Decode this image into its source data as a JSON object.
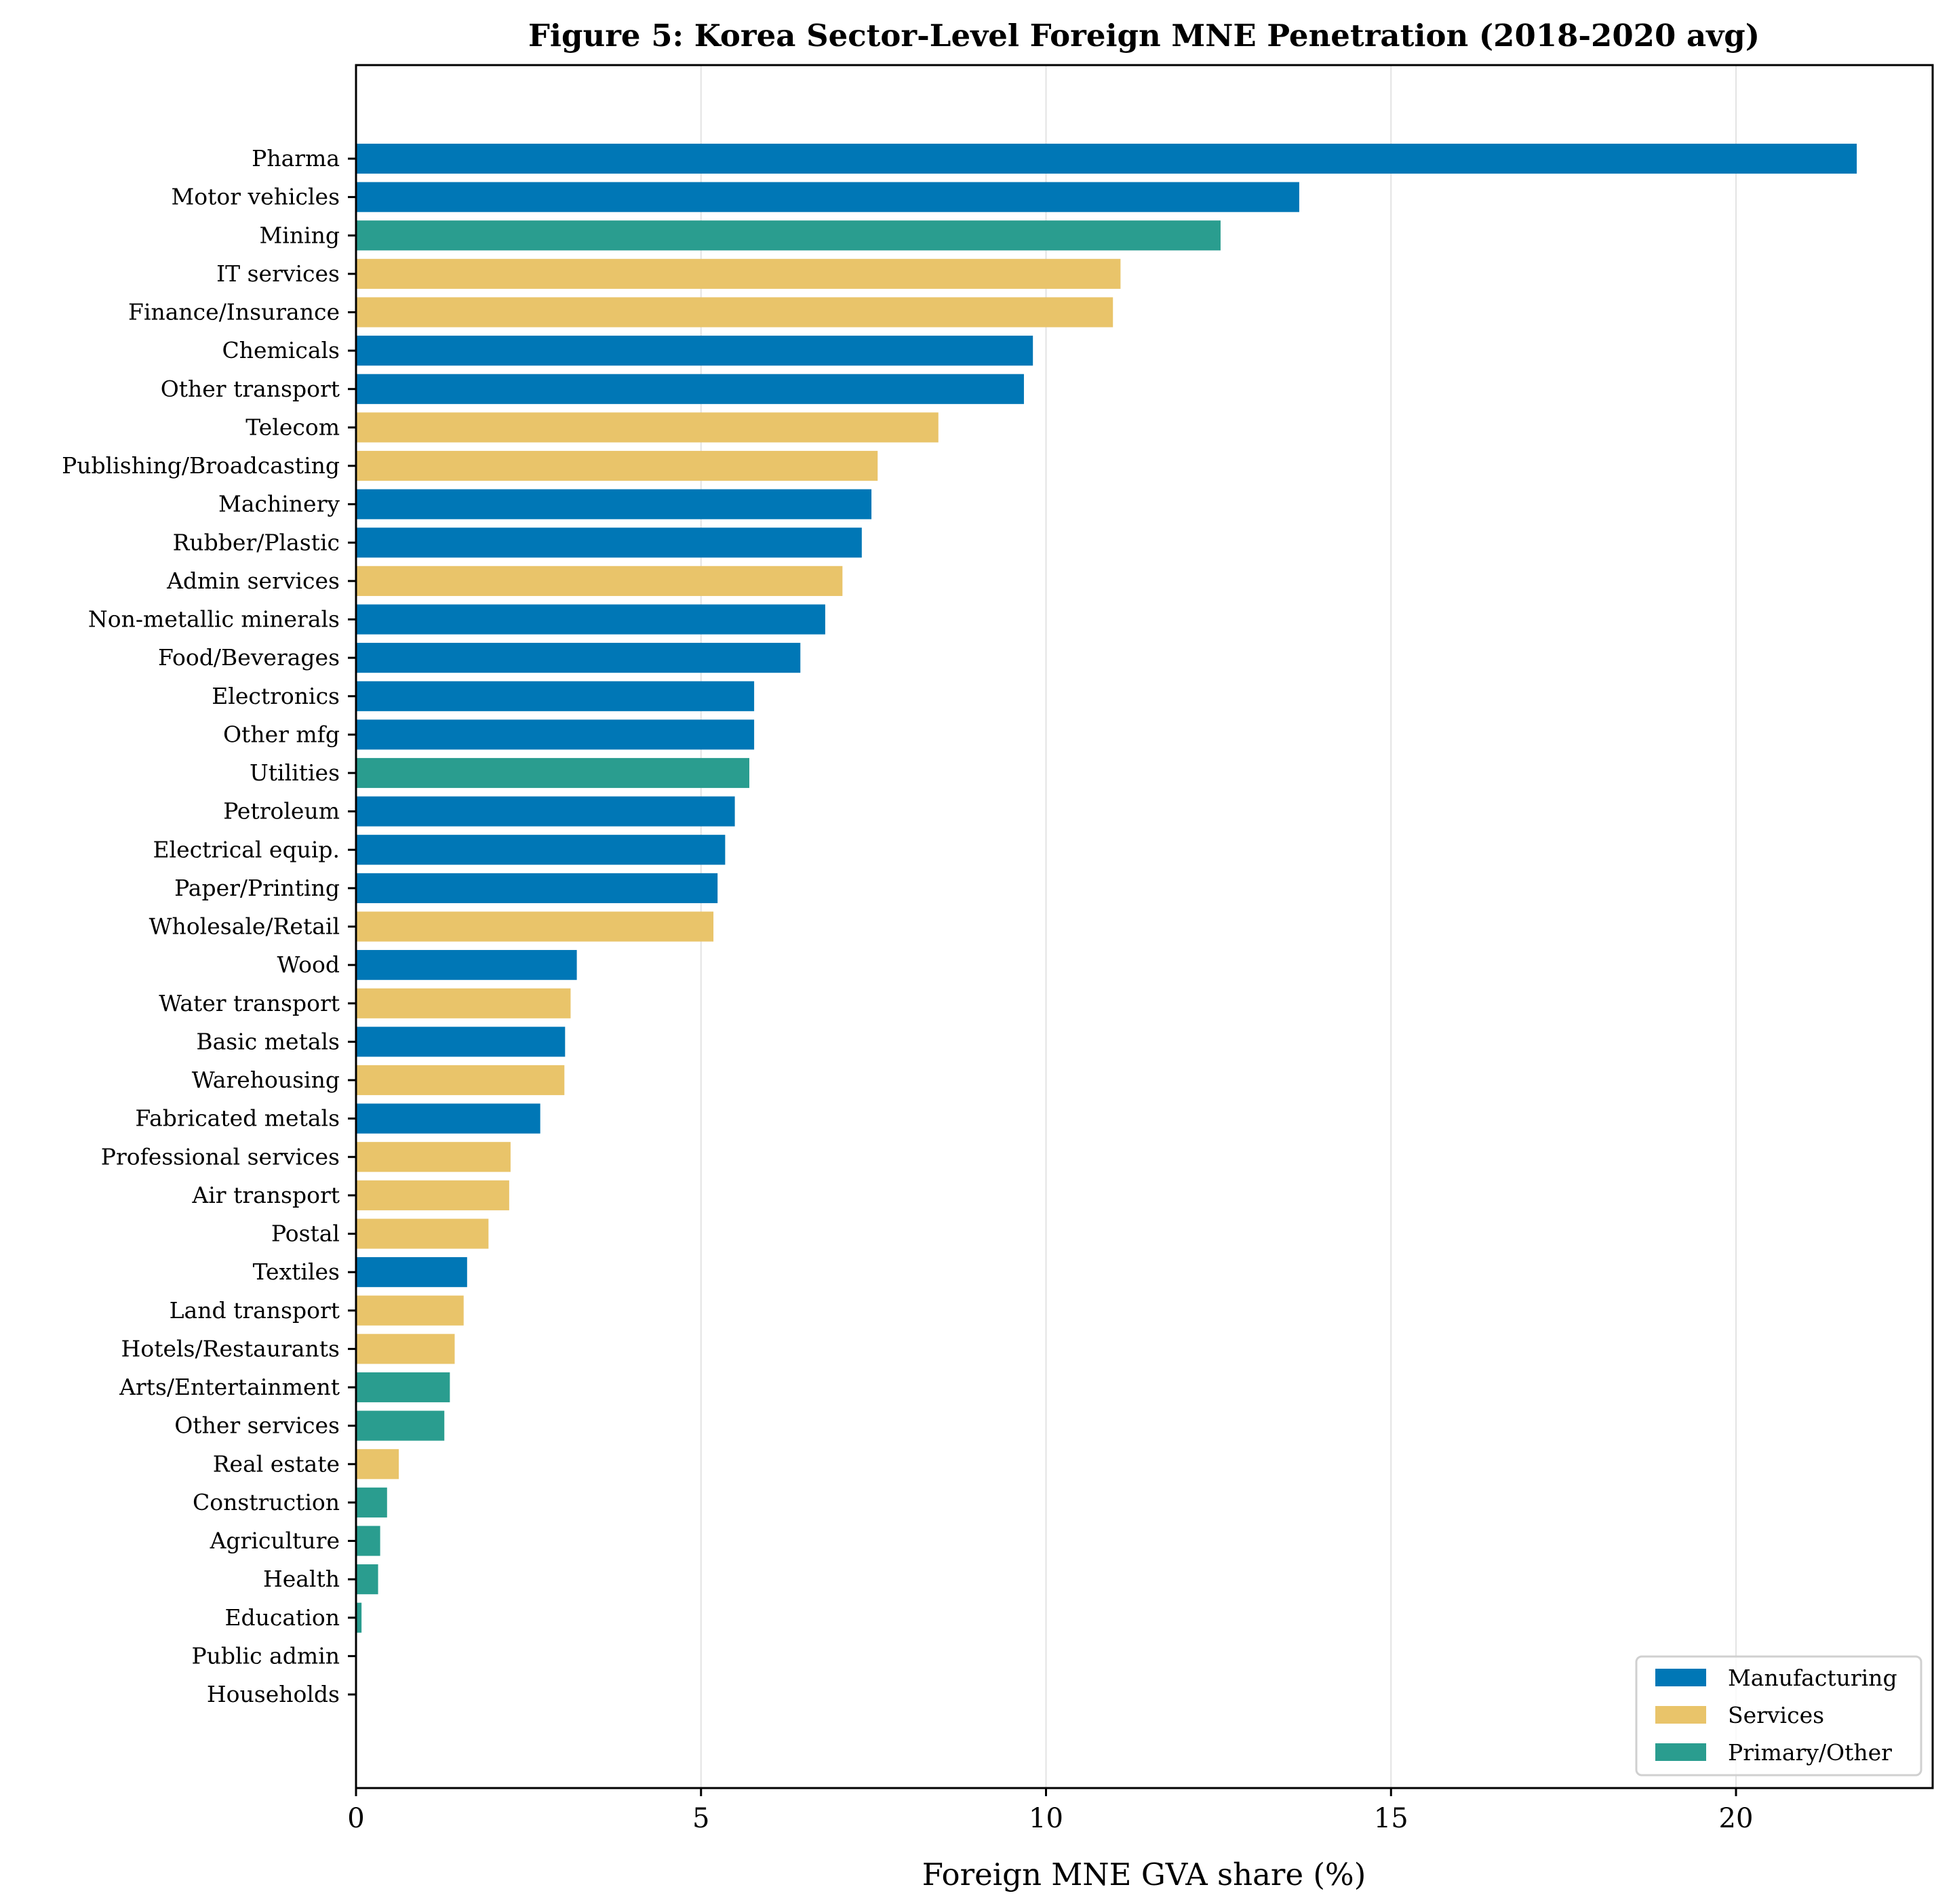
{
  "chart_data": {
    "type": "bar",
    "orientation": "horizontal",
    "title": "Figure 5: Korea Sector-Level Foreign MNE Penetration (2018-2020 avg)",
    "xlabel": "Foreign MNE GVA share (%)",
    "ylabel": "",
    "xlim": [
      0,
      22.85
    ],
    "xticks": [
      0,
      5,
      10,
      15,
      20
    ],
    "grid": "x",
    "legend_position": "bottom-right",
    "groups": [
      {
        "name": "Manufacturing",
        "color": "#0077B6"
      },
      {
        "name": "Services",
        "color": "#E9C46A"
      },
      {
        "name": "Primary/Other",
        "color": "#2A9D8F"
      }
    ],
    "categories": [
      "Pharma",
      "Motor vehicles",
      "Mining",
      "IT services",
      "Finance/Insurance",
      "Chemicals",
      "Other transport",
      "Telecom",
      "Publishing/Broadcasting",
      "Machinery",
      "Rubber/Plastic",
      "Admin services",
      "Non-metallic minerals",
      "Food/Beverages",
      "Electronics",
      "Other mfg",
      "Utilities",
      "Petroleum",
      "Electrical equip.",
      "Paper/Printing",
      "Wholesale/Retail",
      "Wood",
      "Water transport",
      "Basic metals",
      "Warehousing",
      "Fabricated metals",
      "Professional services",
      "Air transport",
      "Postal",
      "Textiles",
      "Land transport",
      "Hotels/Restaurants",
      "Arts/Entertainment",
      "Other services",
      "Real estate",
      "Construction",
      "Agriculture",
      "Health",
      "Education",
      "Public admin",
      "Households"
    ],
    "values": [
      21.75,
      13.67,
      12.53,
      11.08,
      10.97,
      9.81,
      9.68,
      8.44,
      7.56,
      7.47,
      7.33,
      7.05,
      6.8,
      6.44,
      5.77,
      5.77,
      5.7,
      5.49,
      5.35,
      5.24,
      5.18,
      3.2,
      3.11,
      3.03,
      3.02,
      2.67,
      2.24,
      2.22,
      1.92,
      1.61,
      1.56,
      1.43,
      1.36,
      1.28,
      0.62,
      0.45,
      0.35,
      0.32,
      0.08,
      0.0,
      0.0
    ],
    "group_of": [
      "Manufacturing",
      "Manufacturing",
      "Primary/Other",
      "Services",
      "Services",
      "Manufacturing",
      "Manufacturing",
      "Services",
      "Services",
      "Manufacturing",
      "Manufacturing",
      "Services",
      "Manufacturing",
      "Manufacturing",
      "Manufacturing",
      "Manufacturing",
      "Primary/Other",
      "Manufacturing",
      "Manufacturing",
      "Manufacturing",
      "Services",
      "Manufacturing",
      "Services",
      "Manufacturing",
      "Services",
      "Manufacturing",
      "Services",
      "Services",
      "Services",
      "Manufacturing",
      "Services",
      "Services",
      "Primary/Other",
      "Primary/Other",
      "Services",
      "Primary/Other",
      "Primary/Other",
      "Primary/Other",
      "Primary/Other",
      "Primary/Other",
      "Primary/Other"
    ]
  }
}
